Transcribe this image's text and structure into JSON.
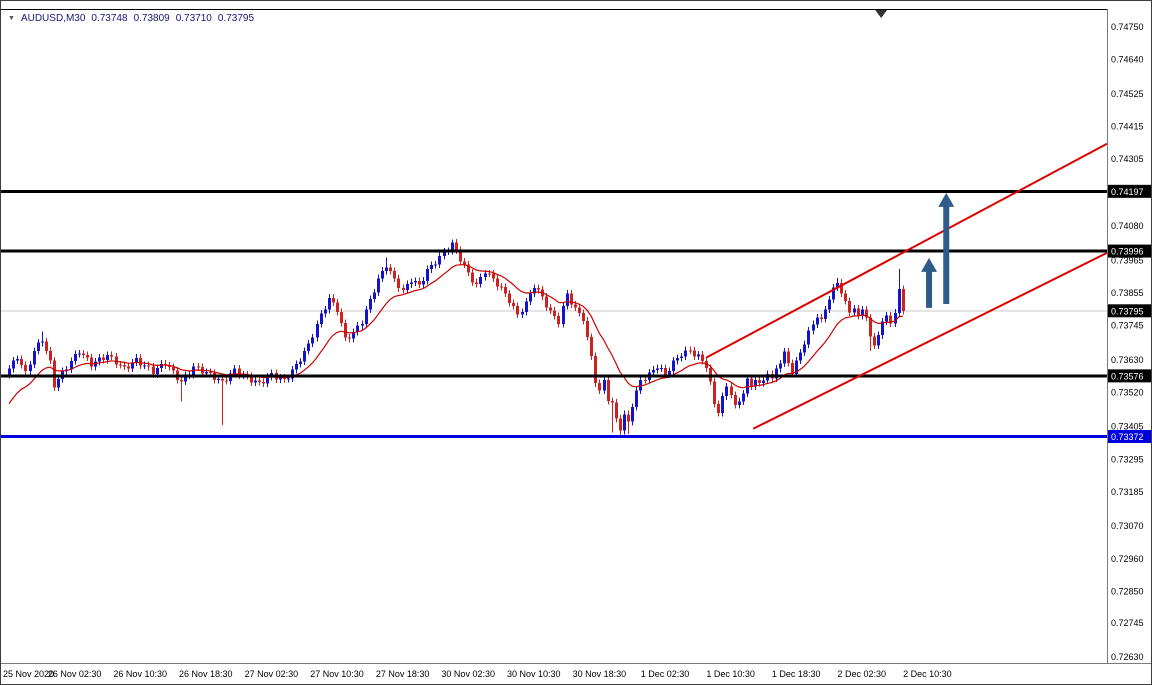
{
  "header": {
    "expander_icon": "▼",
    "symbol_timeframe": "AUDUSD,M30",
    "open": "0.73748",
    "high": "0.73809",
    "low": "0.73710",
    "close": "0.73795"
  },
  "chart_data": {
    "type": "candlestick",
    "symbol": "AUDUSD",
    "timeframe": "M30",
    "y_range": [
      0.7263,
      0.7475
    ],
    "y_ticks": [
      0.7475,
      0.7464,
      0.74525,
      0.74415,
      0.74305,
      0.7408,
      0.73965,
      0.73855,
      0.73745,
      0.7363,
      0.7352,
      0.73405,
      0.73295,
      0.73185,
      0.7307,
      0.7296,
      0.7285,
      0.72745,
      0.7263
    ],
    "x_labels": [
      {
        "label": "25 Nov 2020",
        "index": 0
      },
      {
        "label": "26 Nov 02:30",
        "index": 16
      },
      {
        "label": "26 Nov 10:30",
        "index": 32
      },
      {
        "label": "26 Nov 18:30",
        "index": 48
      },
      {
        "label": "27 Nov 02:30",
        "index": 64
      },
      {
        "label": "27 Nov 10:30",
        "index": 80
      },
      {
        "label": "27 Nov 18:30",
        "index": 96
      },
      {
        "label": "30 Nov 02:30",
        "index": 112
      },
      {
        "label": "30 Nov 10:30",
        "index": 128
      },
      {
        "label": "30 Nov 18:30",
        "index": 144
      },
      {
        "label": "1 Dec 02:30",
        "index": 160
      },
      {
        "label": "1 Dec 10:30",
        "index": 176
      },
      {
        "label": "1 Dec 18:30",
        "index": 192
      },
      {
        "label": "2 Dec 02:30",
        "index": 208
      },
      {
        "label": "2 Dec 10:30",
        "index": 224
      }
    ],
    "candles_per_label": 16,
    "candle_count": 219,
    "first_open": 0.7358,
    "price_path_anchors": [
      [
        0,
        0.736
      ],
      [
        2,
        0.7364
      ],
      [
        4,
        0.73585
      ],
      [
        6,
        0.7366
      ],
      [
        8,
        0.737
      ],
      [
        10,
        0.7362
      ],
      [
        11,
        0.73545
      ],
      [
        13,
        0.73585
      ],
      [
        15,
        0.73625
      ],
      [
        17,
        0.7366
      ],
      [
        20,
        0.73615
      ],
      [
        24,
        0.73645
      ],
      [
        28,
        0.736
      ],
      [
        31,
        0.7363
      ],
      [
        35,
        0.7359
      ],
      [
        38,
        0.7362
      ],
      [
        42,
        0.73555
      ],
      [
        45,
        0.73605
      ],
      [
        49,
        0.7358
      ],
      [
        52,
        0.73555
      ],
      [
        55,
        0.73595
      ],
      [
        58,
        0.7357
      ],
      [
        61,
        0.7355
      ],
      [
        64,
        0.7358
      ],
      [
        67,
        0.7356
      ],
      [
        70,
        0.7361
      ],
      [
        73,
        0.7368
      ],
      [
        76,
        0.7378
      ],
      [
        78,
        0.73835
      ],
      [
        80,
        0.738
      ],
      [
        82,
        0.737
      ],
      [
        84,
        0.7372
      ],
      [
        86,
        0.7376
      ],
      [
        88,
        0.7383
      ],
      [
        90,
        0.739
      ],
      [
        92,
        0.7395
      ],
      [
        94,
        0.739
      ],
      [
        96,
        0.7386
      ],
      [
        98,
        0.739
      ],
      [
        100,
        0.7388
      ],
      [
        102,
        0.7393
      ],
      [
        104,
        0.7396
      ],
      [
        106,
        0.7399
      ],
      [
        108,
        0.7402
      ],
      [
        110,
        0.7397
      ],
      [
        112,
        0.7392
      ],
      [
        114,
        0.7388
      ],
      [
        116,
        0.7393
      ],
      [
        118,
        0.739
      ],
      [
        120,
        0.7387
      ],
      [
        122,
        0.7383
      ],
      [
        124,
        0.7378
      ],
      [
        126,
        0.7382
      ],
      [
        128,
        0.7388
      ],
      [
        130,
        0.7384
      ],
      [
        132,
        0.7379
      ],
      [
        134,
        0.7376
      ],
      [
        136,
        0.7385
      ],
      [
        138,
        0.738
      ],
      [
        140,
        0.7377
      ],
      [
        141,
        0.737
      ],
      [
        142,
        0.7364
      ],
      [
        143,
        0.7356
      ],
      [
        144,
        0.7352
      ],
      [
        145,
        0.7356
      ],
      [
        146,
        0.735
      ],
      [
        147,
        0.7348
      ],
      [
        148,
        0.7343
      ],
      [
        149,
        0.734
      ],
      [
        150,
        0.7344
      ],
      [
        151,
        0.7342
      ],
      [
        152,
        0.7348
      ],
      [
        154,
        0.7356
      ],
      [
        156,
        0.7358
      ],
      [
        158,
        0.7361
      ],
      [
        160,
        0.7358
      ],
      [
        162,
        0.7362
      ],
      [
        164,
        0.7365
      ],
      [
        166,
        0.7366
      ],
      [
        168,
        0.7364
      ],
      [
        170,
        0.7361
      ],
      [
        171,
        0.7355
      ],
      [
        172,
        0.7348
      ],
      [
        173,
        0.7346
      ],
      [
        174,
        0.735
      ],
      [
        175,
        0.7354
      ],
      [
        176,
        0.7352
      ],
      [
        177,
        0.7347
      ],
      [
        178,
        0.7349
      ],
      [
        180,
        0.7356
      ],
      [
        181,
        0.7354
      ],
      [
        182,
        0.7357
      ],
      [
        183,
        0.73545
      ],
      [
        184,
        0.7356
      ],
      [
        185,
        0.7359
      ],
      [
        186,
        0.7356
      ],
      [
        187,
        0.736
      ],
      [
        189,
        0.7365
      ],
      [
        190,
        0.7362
      ],
      [
        191,
        0.7359
      ],
      [
        192,
        0.7362
      ],
      [
        194,
        0.7369
      ],
      [
        195,
        0.7372
      ],
      [
        197,
        0.7378
      ],
      [
        198,
        0.7376
      ],
      [
        199,
        0.738
      ],
      [
        200,
        0.7384
      ],
      [
        202,
        0.7389
      ],
      [
        203,
        0.7386
      ],
      [
        204,
        0.7382
      ],
      [
        205,
        0.7379
      ],
      [
        206,
        0.7381
      ],
      [
        207,
        0.7377
      ],
      [
        208,
        0.738
      ],
      [
        209,
        0.7378
      ],
      [
        210,
        0.737
      ],
      [
        211,
        0.7368
      ],
      [
        212,
        0.7372
      ],
      [
        214,
        0.7378
      ],
      [
        215,
        0.7376
      ],
      [
        216,
        0.7378
      ],
      [
        217,
        0.7387
      ],
      [
        218,
        0.73795
      ]
    ],
    "wick_overrides": {
      "8": {
        "h": 0.73725
      },
      "42": {
        "l": 0.7349
      },
      "52": {
        "l": 0.7341
      },
      "92": {
        "h": 0.73975
      },
      "108": {
        "h": 0.74035
      },
      "147": {
        "l": 0.73385
      },
      "149": {
        "l": 0.73375
      },
      "151": {
        "l": 0.7338
      },
      "202": {
        "h": 0.73905
      },
      "210": {
        "l": 0.7366
      },
      "217": {
        "h": 0.73935
      }
    },
    "horizontal_lines": [
      {
        "price": 0.74197,
        "label": "0.74197",
        "color": "#000000",
        "badge_bg": "#000000",
        "width": 3
      },
      {
        "price": 0.73996,
        "label": "0.73996",
        "color": "#000000",
        "badge_bg": "#000000",
        "width": 3
      },
      {
        "price": 0.73576,
        "label": "0.73576",
        "color": "#000000",
        "badge_bg": "#000000",
        "width": 3
      },
      {
        "price": 0.73372,
        "label": "0.73372",
        "color": "#0000E0",
        "badge_bg": "#0000E0",
        "width": 3
      }
    ],
    "current_price": {
      "value": 0.73795,
      "label": "0.73795",
      "line_color": "#c8c8c8",
      "badge_bg": "#000000"
    },
    "trend_channel": {
      "color": "#DD0000",
      "width": 2,
      "lines": [
        {
          "from": {
            "index": 170.0,
            "price": 0.73637
          },
          "to": {
            "index": 267.8,
            "price": 0.74357
          }
        },
        {
          "from": {
            "index": 181.5,
            "price": 0.73398
          },
          "to": {
            "index": 267.8,
            "price": 0.7399
          }
        }
      ]
    },
    "arrows": {
      "color": "#2E5C8A",
      "items": [
        {
          "index": 224.4,
          "from_price": 0.73805,
          "to_price": 0.73973
        },
        {
          "index": 228.6,
          "from_price": 0.73818,
          "to_price": 0.74192
        }
      ]
    },
    "ma": {
      "type": "ema",
      "alpha": 0.13,
      "seed": 0.73465,
      "color": "#CC0000",
      "width": 1.2
    },
    "shift_marker": {
      "index": 212.7
    },
    "colors": {
      "bull": "#1414CC",
      "bear": "#CC2222",
      "axis_text": "#000000",
      "badge_text": "#FFFFFF",
      "background": "#FFFFFF",
      "frame": "#000000",
      "separator": "#7a7a7a"
    }
  }
}
